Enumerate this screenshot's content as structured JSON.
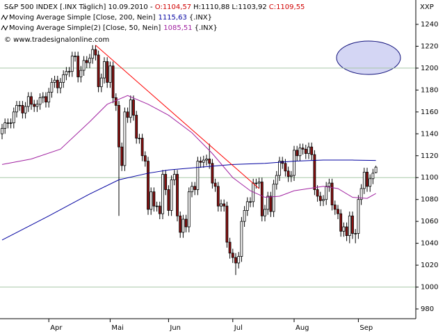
{
  "chart_data": {
    "type": "candlestick",
    "title": "S&P 500 INDEX [.INX  Täglich]  10.09.2010 - ",
    "ohlc_labels": [
      {
        "text": "O:1104,57",
        "color": "#d00000"
      },
      {
        "text": "H:1110,88",
        "color": "#000000"
      },
      {
        "text": "L:1103,92",
        "color": "#000000"
      },
      {
        "text": "C:1109,55",
        "color": "#d00000"
      }
    ],
    "watermark": "© www.tradesignalonline.com",
    "corner_label": "XXP",
    "categories": [
      null,
      null,
      null,
      null,
      null,
      null,
      null,
      null,
      null,
      null,
      null,
      null,
      null,
      null,
      null,
      null,
      "Apr",
      null,
      null,
      null,
      null,
      null,
      null,
      null,
      null,
      null,
      null,
      null,
      null,
      null,
      null,
      null,
      null,
      null,
      null,
      null,
      null,
      "Mai",
      null,
      null,
      null,
      null,
      null,
      null,
      null,
      null,
      null,
      null,
      null,
      null,
      null,
      null,
      null,
      null,
      null,
      null,
      null,
      "Jun",
      null,
      null,
      null,
      null,
      null,
      null,
      null,
      null,
      null,
      null,
      null,
      null,
      null,
      null,
      null,
      null,
      null,
      null,
      null,
      null,
      null,
      "Jul",
      null,
      null,
      null,
      null,
      null,
      null,
      null,
      null,
      null,
      null,
      null,
      null,
      null,
      null,
      null,
      null,
      null,
      null,
      null,
      null,
      "Aug",
      null,
      null,
      null,
      null,
      null,
      null,
      null,
      null,
      null,
      null,
      null,
      null,
      null,
      null,
      null,
      null,
      null,
      null,
      null,
      null,
      null,
      "Sep",
      null,
      null,
      null,
      null,
      null,
      null
    ],
    "open": [
      1140,
      1145,
      1150,
      1150,
      1150,
      1160,
      1166,
      1166,
      1159,
      1165,
      1174,
      1167,
      1165,
      1167,
      1173,
      1174,
      1169,
      1178,
      1187,
      1189,
      1182,
      1187,
      1194,
      1197,
      1197,
      1211,
      1211,
      1192,
      1198,
      1207,
      1205,
      1209,
      1217,
      1212,
      1183,
      1191,
      1206,
      1187,
      1202,
      1173,
      1166,
      1128,
      1111,
      1160,
      1155,
      1171,
      1157,
      1136,
      1136,
      1120,
      1115,
      1071,
      1087,
      1074,
      1074,
      1067,
      1103,
      1089,
      1070,
      1098,
      1103,
      1065,
      1050,
      1062,
      1055,
      1087,
      1092,
      1089,
      1115,
      1114,
      1116,
      1117,
      1113,
      1095,
      1092,
      1074,
      1076,
      1074,
      1041,
      1031,
      1027,
      1022,
      1028,
      1060,
      1070,
      1078,
      1078,
      1095,
      1095,
      1096,
      1065,
      1071,
      1083,
      1069,
      1094,
      1102,
      1115,
      1113,
      1106,
      1101,
      1102,
      1125,
      1120,
      1127,
      1126,
      1122,
      1128,
      1121,
      1089,
      1083,
      1079,
      1080,
      1092,
      1095,
      1075,
      1071,
      1067,
      1051,
      1055,
      1047,
      1065,
      1049,
      1049,
      1080,
      1090,
      1105,
      1092,
      1099,
      1104.57
    ],
    "high": [
      1149,
      1154,
      1154,
      1154,
      1164,
      1170,
      1170,
      1170,
      1169,
      1178,
      1178,
      1171,
      1171,
      1177,
      1178,
      1178,
      1182,
      1191,
      1193,
      1193,
      1191,
      1198,
      1201,
      1201,
      1215,
      1215,
      1215,
      1202,
      1211,
      1211,
      1213,
      1221,
      1221,
      1216,
      1195,
      1210,
      1210,
      1206,
      1206,
      1177,
      1170,
      1132,
      1164,
      1164,
      1175,
      1175,
      1161,
      1140,
      1140,
      1124,
      1119,
      1091,
      1091,
      1078,
      1078,
      1107,
      1107,
      1093,
      1102,
      1107,
      1107,
      1069,
      1066,
      1066,
      1091,
      1096,
      1096,
      1119,
      1119,
      1120,
      1121,
      1131,
      1117,
      1099,
      1096,
      1080,
      1080,
      1078,
      1045,
      1035,
      1031,
      1032,
      1064,
      1074,
      1082,
      1082,
      1099,
      1099,
      1100,
      1100,
      1075,
      1087,
      1087,
      1098,
      1106,
      1119,
      1119,
      1117,
      1110,
      1106,
      1129,
      1129,
      1131,
      1131,
      1130,
      1132,
      1132,
      1125,
      1093,
      1087,
      1084,
      1096,
      1099,
      1099,
      1079,
      1075,
      1071,
      1059,
      1059,
      1069,
      1069,
      1053,
      1084,
      1094,
      1109,
      1109,
      1103,
      1108,
      1110.88
    ],
    "low": [
      1135,
      1140,
      1145,
      1145,
      1145,
      1155,
      1161,
      1154,
      1154,
      1160,
      1162,
      1160,
      1160,
      1162,
      1168,
      1164,
      1164,
      1173,
      1182,
      1177,
      1177,
      1182,
      1189,
      1192,
      1192,
      1206,
      1187,
      1187,
      1193,
      1200,
      1200,
      1204,
      1207,
      1178,
      1178,
      1186,
      1182,
      1182,
      1168,
      1161,
      1065,
      1106,
      1106,
      1150,
      1150,
      1152,
      1131,
      1131,
      1115,
      1110,
      1066,
      1066,
      1069,
      1069,
      1062,
      1062,
      1084,
      1065,
      1065,
      1093,
      1060,
      1045,
      1045,
      1050,
      1050,
      1082,
      1084,
      1084,
      1109,
      1109,
      1111,
      1108,
      1090,
      1087,
      1069,
      1069,
      1069,
      1036,
      1026,
      1022,
      1011,
      1017,
      1023,
      1055,
      1065,
      1073,
      1073,
      1090,
      1090,
      1060,
      1060,
      1066,
      1064,
      1064,
      1089,
      1097,
      1108,
      1101,
      1096,
      1096,
      1097,
      1115,
      1115,
      1121,
      1117,
      1117,
      1116,
      1084,
      1078,
      1074,
      1074,
      1075,
      1087,
      1070,
      1066,
      1062,
      1046,
      1046,
      1042,
      1040,
      1044,
      1040,
      1044,
      1075,
      1085,
      1087,
      1087,
      1094,
      1103.92
    ],
    "close": [
      1145,
      1150,
      1150,
      1150,
      1160,
      1166,
      1166,
      1159,
      1165,
      1174,
      1167,
      1165,
      1167,
      1173,
      1174,
      1169,
      1178,
      1187,
      1189,
      1182,
      1187,
      1194,
      1197,
      1197,
      1211,
      1211,
      1192,
      1198,
      1207,
      1205,
      1209,
      1217,
      1212,
      1183,
      1191,
      1206,
      1187,
      1202,
      1173,
      1166,
      1128,
      1111,
      1160,
      1155,
      1171,
      1157,
      1136,
      1136,
      1120,
      1115,
      1071,
      1087,
      1074,
      1074,
      1067,
      1103,
      1089,
      1070,
      1098,
      1103,
      1065,
      1050,
      1062,
      1055,
      1087,
      1092,
      1089,
      1115,
      1114,
      1116,
      1117,
      1113,
      1095,
      1092,
      1074,
      1076,
      1074,
      1041,
      1031,
      1027,
      1022,
      1028,
      1060,
      1070,
      1078,
      1078,
      1095,
      1095,
      1096,
      1065,
      1071,
      1083,
      1069,
      1094,
      1102,
      1115,
      1113,
      1106,
      1101,
      1102,
      1125,
      1120,
      1127,
      1126,
      1122,
      1128,
      1121,
      1089,
      1083,
      1079,
      1080,
      1092,
      1095,
      1075,
      1071,
      1067,
      1051,
      1055,
      1047,
      1065,
      1049,
      1049,
      1080,
      1090,
      1105,
      1092,
      1099,
      1104,
      1109.55
    ],
    "up_color": "#ffffff",
    "down_color": "#8b1010",
    "series": [
      {
        "name": "Moving Average Simple [Close, 200, Nein]",
        "value_label": "1115,63",
        "suffix": "{.INX}",
        "color": "#0000a0",
        "x": [
          0,
          16,
          30,
          40,
          50,
          57,
          70,
          79,
          90,
          100,
          110,
          120,
          128
        ],
        "values": [
          1043,
          1065,
          1085,
          1098,
          1104,
          1107,
          1110,
          1112,
          1113,
          1115,
          1116,
          1116,
          1115.63
        ]
      },
      {
        "name": "Moving Average Simple(2) [Close, 50, Nein]",
        "value_label": "1085,51",
        "suffix": "{.INX}",
        "color": "#a020a0",
        "x": [
          0,
          10,
          20,
          30,
          36,
          43,
          50,
          57,
          65,
          72,
          79,
          85,
          90,
          95,
          100,
          105,
          110,
          115,
          120,
          125,
          128
        ],
        "values": [
          1112,
          1117,
          1126,
          1151,
          1167,
          1175,
          1167,
          1157,
          1141,
          1122,
          1100,
          1088,
          1082,
          1083,
          1088,
          1090,
          1092,
          1090,
          1082,
          1081,
          1085.51
        ]
      }
    ],
    "trendline": {
      "color": "#ff0000",
      "x": [
        32,
        88
      ],
      "values": [
        1221,
        1090
      ]
    },
    "ylim": [
      980,
      1240
    ],
    "yticks": [
      980,
      1000,
      1020,
      1040,
      1060,
      1080,
      1100,
      1120,
      1140,
      1160,
      1180,
      1200,
      1220,
      1240
    ],
    "grid_values": [
      1000,
      1100,
      1200
    ],
    "grid_color": "#a8c8a8"
  }
}
